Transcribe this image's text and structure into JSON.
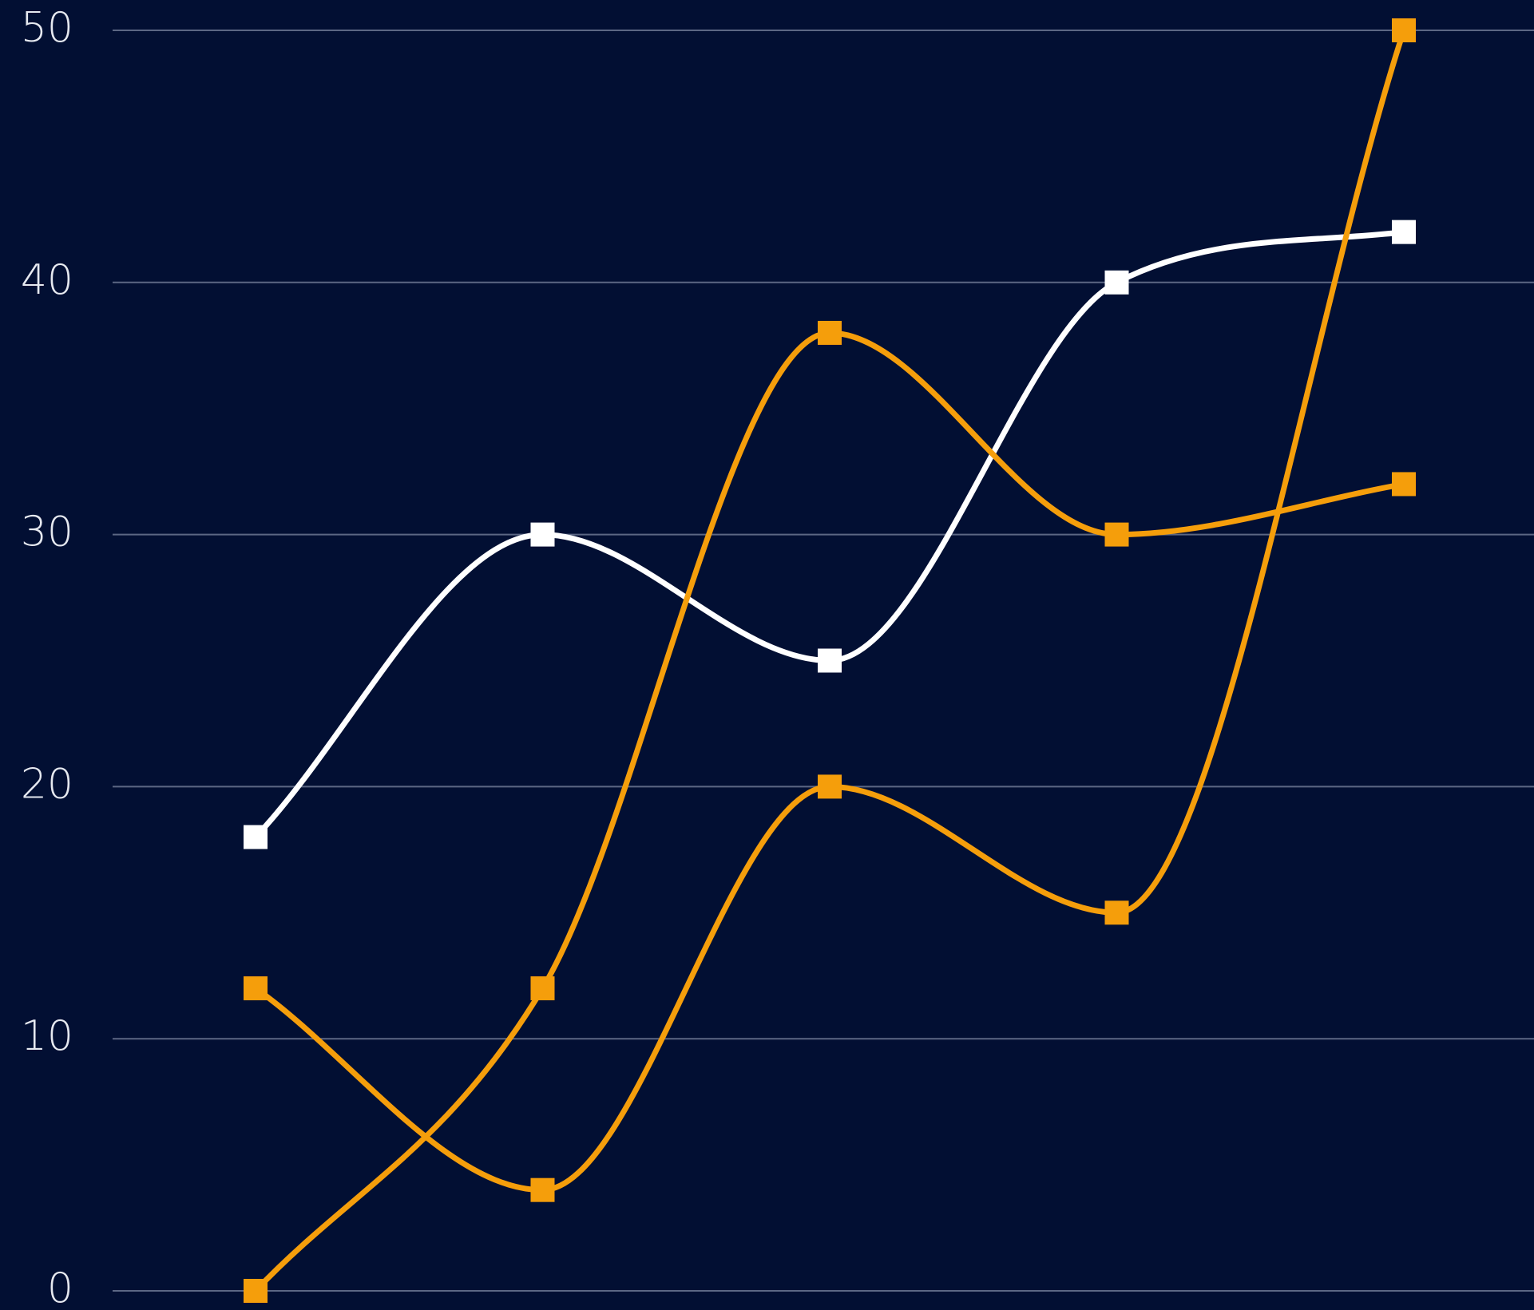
{
  "chart_data": {
    "type": "line",
    "categories": [
      null,
      null,
      null,
      null,
      null
    ],
    "series": [
      {
        "color": "#ffffff",
        "values": [
          18,
          30,
          25,
          40,
          42
        ]
      },
      {
        "color": "#f59e0b",
        "values": [
          12,
          4,
          20,
          15,
          50
        ]
      },
      {
        "color": "#f59e0b",
        "values": [
          0,
          12,
          38,
          30,
          32
        ]
      }
    ],
    "ylim": [
      0,
      50
    ],
    "yticks": [
      0,
      10,
      20,
      30,
      40,
      50
    ],
    "grid": true,
    "background": "#020f33"
  }
}
